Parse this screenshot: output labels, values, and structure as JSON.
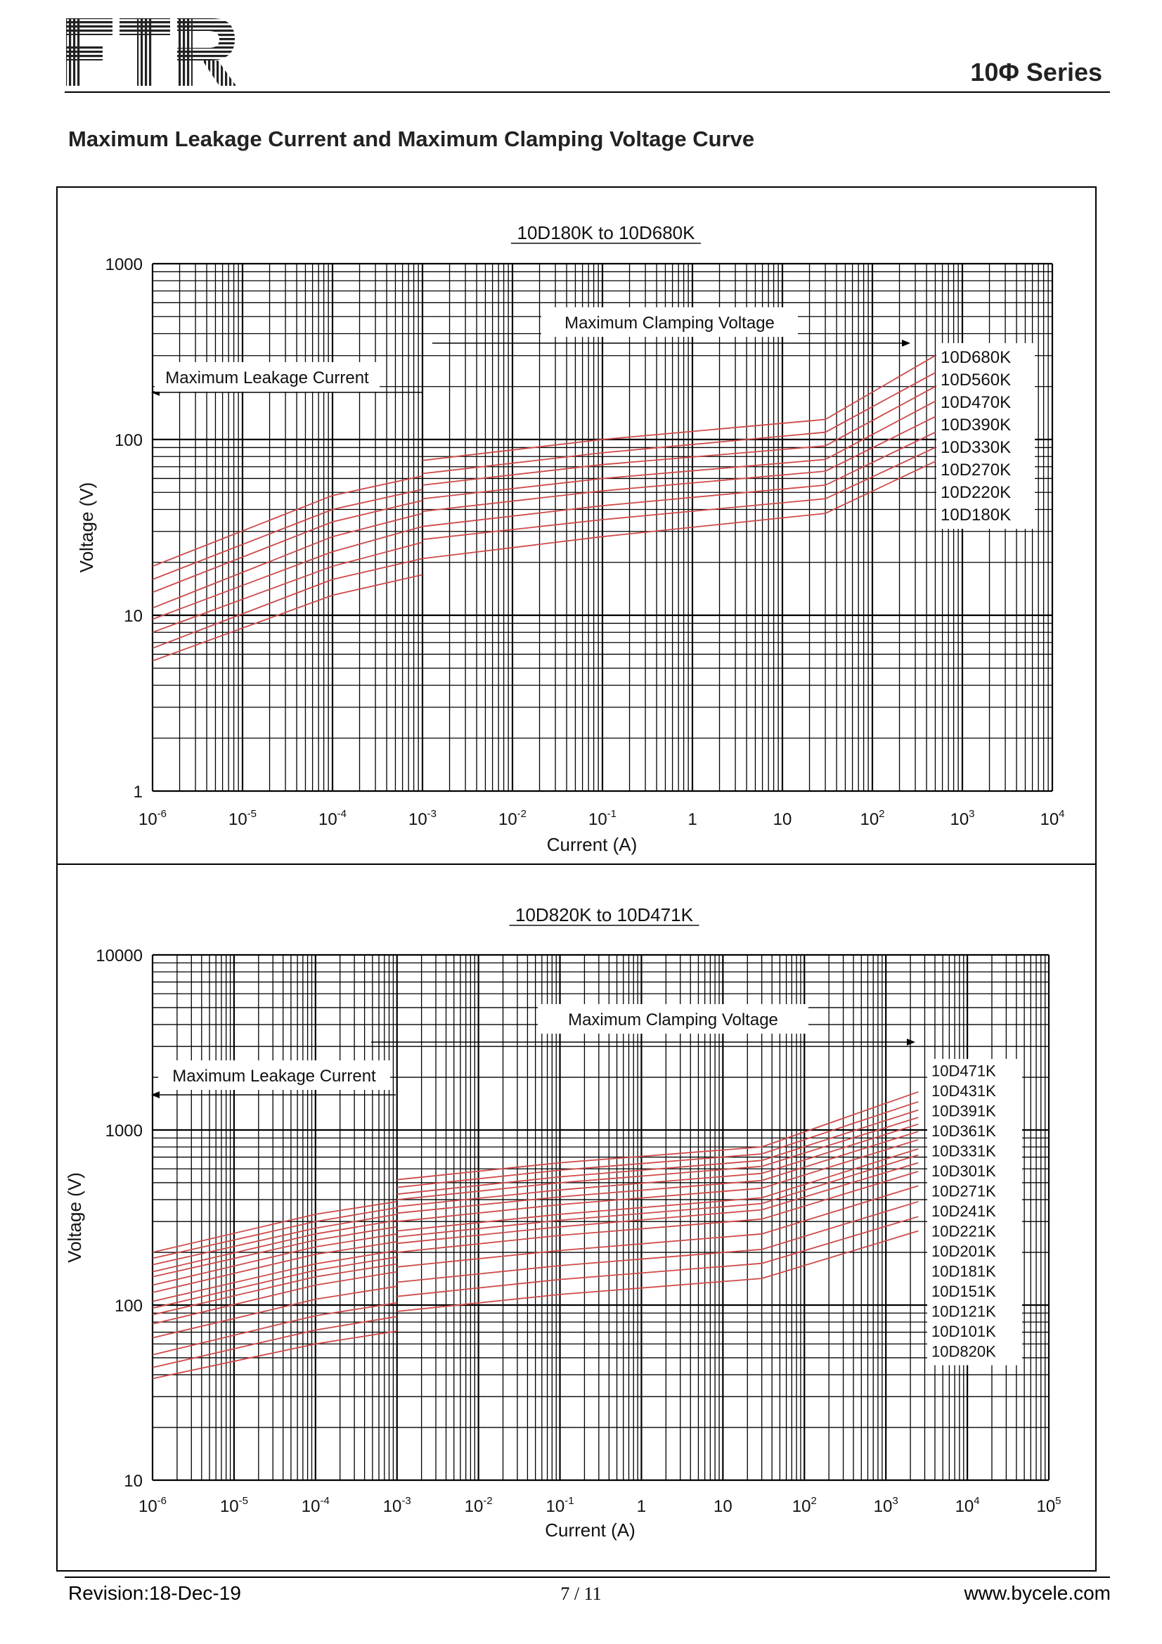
{
  "header": {
    "logo_text": "FTR",
    "series": "10Φ Series"
  },
  "section_title": "Maximum Leakage Current and Maximum Clamping Voltage Curve",
  "footer": {
    "revision": "Revision:18-Dec-19",
    "page": "7 / 11",
    "website": "www.bycele.com"
  },
  "colors": {
    "curve": "#cf4a4a",
    "grid": "#000000"
  },
  "chart_data": [
    {
      "type": "line",
      "title": "10D180K to 10D680K",
      "xlabel": "Current (A)",
      "ylabel": "Voltage (V)",
      "xscale": "log",
      "yscale": "log",
      "xlim": [
        1e-06,
        10000
      ],
      "ylim": [
        1,
        1000
      ],
      "x_ticks": [
        {
          "base": "10",
          "exp": "-6"
        },
        {
          "base": "10",
          "exp": "-5"
        },
        {
          "base": "10",
          "exp": "-4"
        },
        {
          "base": "10",
          "exp": "-3"
        },
        {
          "base": "10",
          "exp": "-2"
        },
        {
          "base": "10",
          "exp": "-1"
        },
        {
          "base": "1",
          "exp": ""
        },
        {
          "base": "10",
          "exp": ""
        },
        {
          "base": "10",
          "exp": "2"
        },
        {
          "base": "10",
          "exp": "3"
        },
        {
          "base": "10",
          "exp": "4"
        }
      ],
      "y_ticks": [
        "1",
        "10",
        "100",
        "1000"
      ],
      "annotations": {
        "leakage": "Maximum Leakage Current",
        "clamping": "Maximum Clamping Voltage"
      },
      "leakage_end": 0.001,
      "clamp_start": 0.001,
      "clamp_end": 500,
      "series": [
        {
          "name": "10D680K",
          "leak": [
            19,
            48,
            62
          ],
          "clamp": [
            76,
            100,
            130,
            300
          ]
        },
        {
          "name": "10D560K",
          "leak": [
            16,
            40,
            52
          ],
          "clamp": [
            64,
            84,
            110,
            240
          ]
        },
        {
          "name": "10D470K",
          "leak": [
            13.5,
            34,
            45
          ],
          "clamp": [
            55,
            72,
            92,
            200
          ]
        },
        {
          "name": "10D390K",
          "leak": [
            11,
            28,
            38
          ],
          "clamp": [
            46,
            60,
            77,
            165
          ]
        },
        {
          "name": "10D330K",
          "leak": [
            9.5,
            23,
            32
          ],
          "clamp": [
            39,
            51,
            66,
            135
          ]
        },
        {
          "name": "10D270K",
          "leak": [
            8,
            19,
            26
          ],
          "clamp": [
            32,
            42,
            55,
            110
          ]
        },
        {
          "name": "10D220K",
          "leak": [
            6.5,
            16,
            21
          ],
          "clamp": [
            27,
            35,
            46,
            90
          ]
        },
        {
          "name": "10D180K",
          "leak": [
            5.5,
            13,
            17
          ],
          "clamp": [
            21,
            28,
            38,
            75
          ]
        }
      ]
    },
    {
      "type": "line",
      "title": "10D820K to 10D471K",
      "xlabel": "Current (A)",
      "ylabel": "Voltage (V)",
      "xscale": "log",
      "yscale": "log",
      "xlim": [
        1e-06,
        100000
      ],
      "ylim": [
        10,
        10000
      ],
      "x_ticks": [
        {
          "base": "10",
          "exp": "-6"
        },
        {
          "base": "10",
          "exp": "-5"
        },
        {
          "base": "10",
          "exp": "-4"
        },
        {
          "base": "10",
          "exp": "-3"
        },
        {
          "base": "10",
          "exp": "-2"
        },
        {
          "base": "10",
          "exp": "-1"
        },
        {
          "base": "1",
          "exp": ""
        },
        {
          "base": "10",
          "exp": ""
        },
        {
          "base": "10",
          "exp": "2"
        },
        {
          "base": "10",
          "exp": "3"
        },
        {
          "base": "10",
          "exp": "4"
        },
        {
          "base": "10",
          "exp": "5"
        }
      ],
      "y_ticks": [
        "10",
        "100",
        "1000",
        "10000"
      ],
      "annotations": {
        "leakage": "Maximum Leakage Current",
        "clamping": "Maximum Clamping Voltage"
      },
      "leakage_end": 0.001,
      "clamp_start": 0.001,
      "clamp_end": 2500,
      "series": [
        {
          "name": "10D471K",
          "leak": [
            200,
            330,
            390
          ],
          "clamp": [
            520,
            650,
            800,
            1650
          ]
        },
        {
          "name": "10D431K",
          "leak": [
            185,
            300,
            360
          ],
          "clamp": [
            470,
            590,
            730,
            1450
          ]
        },
        {
          "name": "10D391K",
          "leak": [
            170,
            275,
            330
          ],
          "clamp": [
            430,
            540,
            670,
            1300
          ]
        },
        {
          "name": "10D361K",
          "leak": [
            155,
            255,
            305
          ],
          "clamp": [
            400,
            500,
            620,
            1180
          ]
        },
        {
          "name": "10D331K",
          "leak": [
            145,
            235,
            280
          ],
          "clamp": [
            365,
            455,
            565,
            1080
          ]
        },
        {
          "name": "10D301K",
          "leak": [
            130,
            215,
            255
          ],
          "clamp": [
            335,
            415,
            515,
            980
          ]
        },
        {
          "name": "10D271K",
          "leak": [
            118,
            195,
            230
          ],
          "clamp": [
            300,
            375,
            465,
            880
          ]
        },
        {
          "name": "10D241K",
          "leak": [
            105,
            172,
            205
          ],
          "clamp": [
            265,
            330,
            410,
            780
          ]
        },
        {
          "name": "10D221K",
          "leak": [
            96,
            158,
            188
          ],
          "clamp": [
            245,
            305,
            380,
            720
          ]
        },
        {
          "name": "10D201K",
          "leak": [
            88,
            145,
            172
          ],
          "clamp": [
            225,
            280,
            350,
            650
          ]
        },
        {
          "name": "10D181K",
          "leak": [
            78,
            130,
            155
          ],
          "clamp": [
            200,
            250,
            310,
            580
          ]
        },
        {
          "name": "10D151K",
          "leak": [
            65,
            108,
            128
          ],
          "clamp": [
            165,
            205,
            255,
            480
          ]
        },
        {
          "name": "10D121K",
          "leak": [
            52,
            87,
            103
          ],
          "clamp": [
            135,
            168,
            208,
            390
          ]
        },
        {
          "name": "10D101K",
          "leak": [
            44,
            72,
            86
          ],
          "clamp": [
            112,
            140,
            173,
            320
          ]
        },
        {
          "name": "10D820K",
          "leak": [
            38,
            60,
            71
          ],
          "clamp": [
            92,
            115,
            142,
            265
          ]
        }
      ]
    }
  ]
}
